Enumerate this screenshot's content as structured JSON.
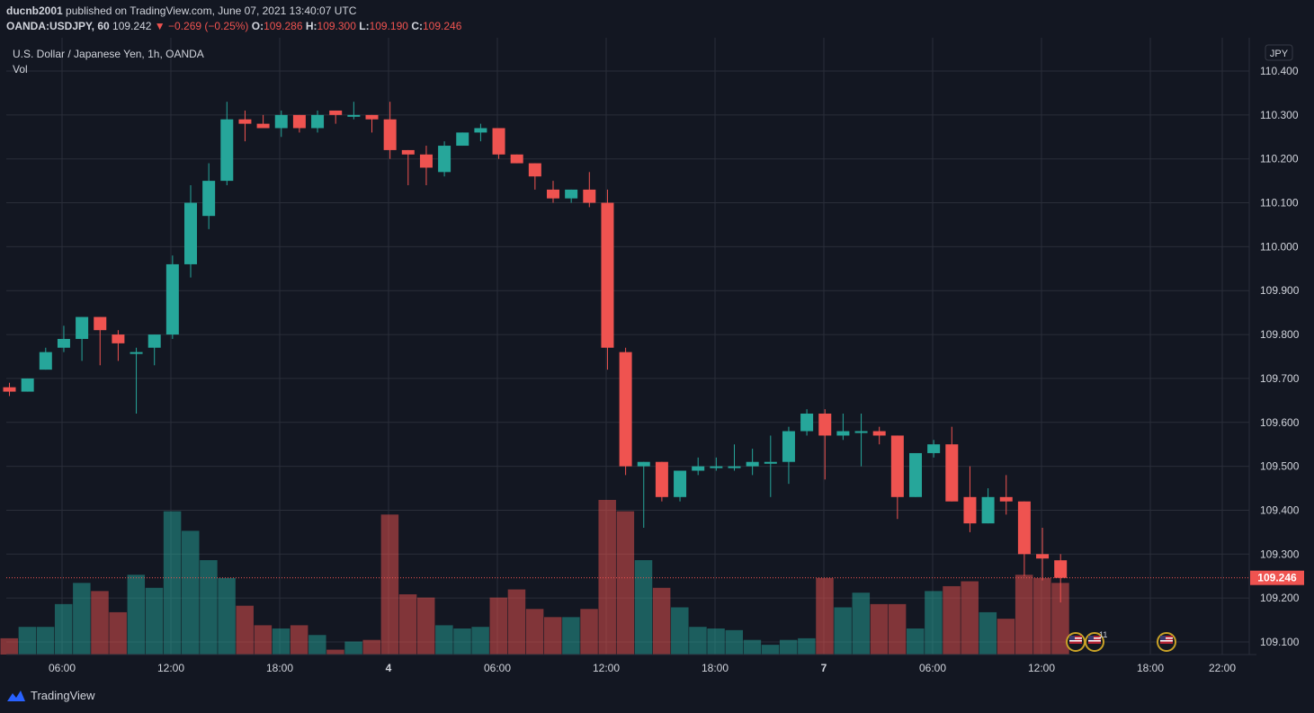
{
  "header": {
    "publisher": "ducnb2001",
    "published_text": "published on TradingView.com, June 07, 2021 13:40:07 UTC",
    "symbol": "OANDA:USDJPY, 60",
    "last": "109.242",
    "change": "−0.269 (−0.25%)",
    "o_label": "O:",
    "o_value": "109.286",
    "h_label": "H:",
    "h_value": "109.300",
    "l_label": "L:",
    "l_value": "109.190",
    "c_label": "C:",
    "c_value": "109.246"
  },
  "legend": {
    "title": "U.S. Dollar / Japanese Yen, 1h, OANDA",
    "vol": "Vol"
  },
  "price_axis": {
    "currency": "JPY",
    "ticks": [
      "110.400",
      "110.300",
      "110.200",
      "110.100",
      "110.000",
      "109.900",
      "109.800",
      "109.700",
      "109.600",
      "109.500",
      "109.400",
      "109.300",
      "109.200",
      "109.100"
    ],
    "last_price_label": "109.246"
  },
  "time_axis": {
    "labels": [
      "06:00",
      "12:00",
      "18:00",
      "4",
      "06:00",
      "12:00",
      "18:00",
      "7",
      "06:00",
      "12:00",
      "18:00",
      "22:00"
    ]
  },
  "events": {
    "badge_count": "11"
  },
  "footer": {
    "brand": "TradingView"
  },
  "colors": {
    "up": "#26a69a",
    "down": "#ef5350",
    "background": "#131722",
    "grid": "#2a2e39",
    "text": "#d1d4dc"
  },
  "chart_data": {
    "type": "candlestick",
    "symbol": "OANDA:USDJPY",
    "interval": "1h",
    "ylim": [
      109.07,
      110.45
    ],
    "grid": true,
    "last_price": 109.246,
    "ohlc": [
      {
        "o": 109.68,
        "h": 109.69,
        "l": 109.66,
        "c": 109.67
      },
      {
        "o": 109.67,
        "h": 109.7,
        "l": 109.67,
        "c": 109.7
      },
      {
        "o": 109.72,
        "h": 109.77,
        "l": 109.72,
        "c": 109.76
      },
      {
        "o": 109.77,
        "h": 109.82,
        "l": 109.76,
        "c": 109.79
      },
      {
        "o": 109.79,
        "h": 109.84,
        "l": 109.74,
        "c": 109.84
      },
      {
        "o": 109.84,
        "h": 109.84,
        "l": 109.73,
        "c": 109.81
      },
      {
        "o": 109.8,
        "h": 109.81,
        "l": 109.74,
        "c": 109.78
      },
      {
        "o": 109.76,
        "h": 109.77,
        "l": 109.62,
        "c": 109.76
      },
      {
        "o": 109.77,
        "h": 109.8,
        "l": 109.73,
        "c": 109.8
      },
      {
        "o": 109.8,
        "h": 109.98,
        "l": 109.79,
        "c": 109.96
      },
      {
        "o": 109.96,
        "h": 110.14,
        "l": 109.93,
        "c": 110.1
      },
      {
        "o": 110.07,
        "h": 110.19,
        "l": 110.04,
        "c": 110.15
      },
      {
        "o": 110.15,
        "h": 110.33,
        "l": 110.14,
        "c": 110.29
      },
      {
        "o": 110.29,
        "h": 110.31,
        "l": 110.24,
        "c": 110.28
      },
      {
        "o": 110.28,
        "h": 110.3,
        "l": 110.27,
        "c": 110.27
      },
      {
        "o": 110.27,
        "h": 110.31,
        "l": 110.25,
        "c": 110.3
      },
      {
        "o": 110.3,
        "h": 110.3,
        "l": 110.26,
        "c": 110.27
      },
      {
        "o": 110.27,
        "h": 110.31,
        "l": 110.26,
        "c": 110.3
      },
      {
        "o": 110.31,
        "h": 110.31,
        "l": 110.28,
        "c": 110.3
      },
      {
        "o": 110.3,
        "h": 110.33,
        "l": 110.29,
        "c": 110.3
      },
      {
        "o": 110.3,
        "h": 110.3,
        "l": 110.26,
        "c": 110.29
      },
      {
        "o": 110.29,
        "h": 110.33,
        "l": 110.2,
        "c": 110.22
      },
      {
        "o": 110.22,
        "h": 110.22,
        "l": 110.14,
        "c": 110.21
      },
      {
        "o": 110.21,
        "h": 110.23,
        "l": 110.14,
        "c": 110.18
      },
      {
        "o": 110.17,
        "h": 110.24,
        "l": 110.16,
        "c": 110.23
      },
      {
        "o": 110.23,
        "h": 110.26,
        "l": 110.23,
        "c": 110.26
      },
      {
        "o": 110.26,
        "h": 110.28,
        "l": 110.24,
        "c": 110.27
      },
      {
        "o": 110.27,
        "h": 110.27,
        "l": 110.2,
        "c": 110.21
      },
      {
        "o": 110.21,
        "h": 110.21,
        "l": 110.19,
        "c": 110.19
      },
      {
        "o": 110.19,
        "h": 110.19,
        "l": 110.13,
        "c": 110.16
      },
      {
        "o": 110.13,
        "h": 110.15,
        "l": 110.1,
        "c": 110.11
      },
      {
        "o": 110.11,
        "h": 110.13,
        "l": 110.1,
        "c": 110.13
      },
      {
        "o": 110.13,
        "h": 110.17,
        "l": 110.09,
        "c": 110.1
      },
      {
        "o": 110.1,
        "h": 110.13,
        "l": 109.72,
        "c": 109.77
      },
      {
        "o": 109.76,
        "h": 109.77,
        "l": 109.48,
        "c": 109.5
      },
      {
        "o": 109.5,
        "h": 109.51,
        "l": 109.36,
        "c": 109.51
      },
      {
        "o": 109.51,
        "h": 109.51,
        "l": 109.42,
        "c": 109.43
      },
      {
        "o": 109.43,
        "h": 109.49,
        "l": 109.42,
        "c": 109.49
      },
      {
        "o": 109.49,
        "h": 109.52,
        "l": 109.48,
        "c": 109.5
      },
      {
        "o": 109.5,
        "h": 109.52,
        "l": 109.49,
        "c": 109.5
      },
      {
        "o": 109.5,
        "h": 109.55,
        "l": 109.49,
        "c": 109.5
      },
      {
        "o": 109.5,
        "h": 109.54,
        "l": 109.48,
        "c": 109.51
      },
      {
        "o": 109.51,
        "h": 109.57,
        "l": 109.43,
        "c": 109.51
      },
      {
        "o": 109.51,
        "h": 109.59,
        "l": 109.46,
        "c": 109.58
      },
      {
        "o": 109.58,
        "h": 109.63,
        "l": 109.57,
        "c": 109.62
      },
      {
        "o": 109.62,
        "h": 109.63,
        "l": 109.47,
        "c": 109.57
      },
      {
        "o": 109.57,
        "h": 109.62,
        "l": 109.56,
        "c": 109.58
      },
      {
        "o": 109.58,
        "h": 109.62,
        "l": 109.5,
        "c": 109.58
      },
      {
        "o": 109.58,
        "h": 109.59,
        "l": 109.55,
        "c": 109.57
      },
      {
        "o": 109.57,
        "h": 109.57,
        "l": 109.38,
        "c": 109.43
      },
      {
        "o": 109.43,
        "h": 109.53,
        "l": 109.43,
        "c": 109.53
      },
      {
        "o": 109.53,
        "h": 109.56,
        "l": 109.52,
        "c": 109.55
      },
      {
        "o": 109.55,
        "h": 109.59,
        "l": 109.42,
        "c": 109.42
      },
      {
        "o": 109.43,
        "h": 109.5,
        "l": 109.35,
        "c": 109.37
      },
      {
        "o": 109.37,
        "h": 109.45,
        "l": 109.37,
        "c": 109.43
      },
      {
        "o": 109.43,
        "h": 109.48,
        "l": 109.39,
        "c": 109.42
      },
      {
        "o": 109.42,
        "h": 109.42,
        "l": 109.25,
        "c": 109.3
      },
      {
        "o": 109.3,
        "h": 109.36,
        "l": 109.24,
        "c": 109.29
      },
      {
        "o": 109.286,
        "h": 109.3,
        "l": 109.19,
        "c": 109.246
      }
    ],
    "volume": [
      10,
      17,
      17,
      31,
      44,
      39,
      26,
      49,
      41,
      88,
      76,
      58,
      47,
      30,
      18,
      16,
      18,
      12,
      3,
      8,
      9,
      86,
      37,
      35,
      18,
      16,
      17,
      35,
      40,
      28,
      23,
      23,
      28,
      95,
      88,
      58,
      41,
      29,
      17,
      16,
      15,
      9,
      6,
      9,
      10,
      47,
      29,
      38,
      31,
      31,
      16,
      39,
      42,
      45,
      26,
      22,
      49,
      47,
      44
    ]
  }
}
